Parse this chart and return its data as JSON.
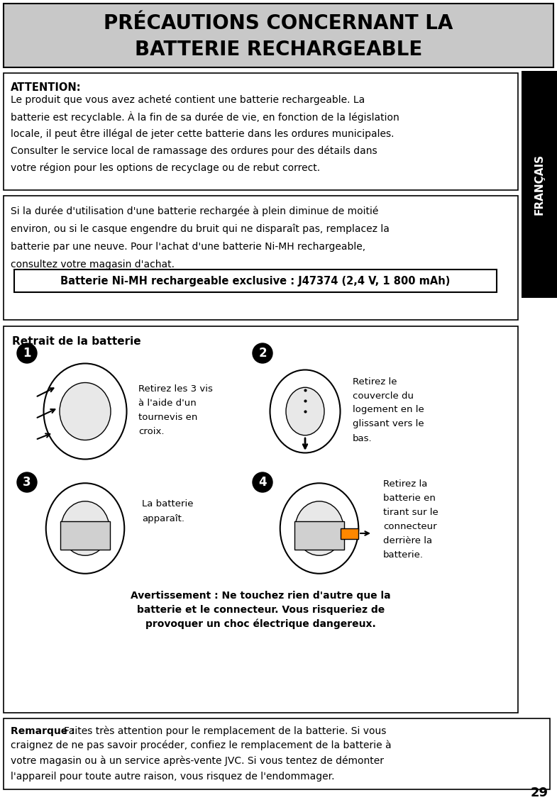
{
  "title_line1": "PRÉCAUTIONS CONCERNANT LA",
  "title_line2": "BATTERIE RECHARGEABLE",
  "title_bg": "#c8c8c8",
  "title_border": "#000000",
  "page_bg": "#ffffff",
  "section1_bold": "ATTENTION:",
  "section1_text": "Le produit que vous avez acheté contient une batterie rechargeable. La\nbatterie est recyclable. À la fin de sa durée de vie, en fonction de la législation\nlocale, il peut être illégal de jeter cette batterie dans les ordures municipales.\nConsulter le service local de ramassage des ordures pour des détails dans\nvotre région pour les options de recyclage ou de rebut correct.",
  "section2_text": "Si la durée d'utilisation d'une batterie rechargée à plein diminue de moitié\nenviron, ou si le casque engendre du bruit qui ne disparaît pas, remplacez la\nbatterie par une neuve. Pour l'achat d'une batterie Ni-MH rechargeable,\nconsultez votre magasin d'achat.",
  "battery_box_text": "Batterie Ni-MH rechargeable exclusive : J47374 (2,4 V, 1 800 mAh)",
  "retrait_title": "Retrait de la batterie",
  "step1_text": "Retirez les 3 vis\nà l'aide d'un\ntournevis en\ncroix.",
  "step2_text": "Retirez le\ncouvercle du\nlogement en le\nglissant vers le\nbas.",
  "step3_text": "La batterie\napparaît.",
  "step4_text": "Retirez la\nbatterie en\ntirant sur le\nconnecteur\nderrière la\nbatterie.",
  "warning_text": "Avertissement : Ne touchez rien d'autre que la\nbatterie et le connecteur. Vous risqueriez de\nprovoquer un choc électrique dangereux.",
  "remarque_bold": "Remarque :",
  "remarque_text": " Faites très attention pour le remplacement de la batterie. Si vous\ncraignez de ne pas savoir procéder, confiez le remplacement de la batterie à\nvotre magasin ou à un service après-vente JVC. Si vous tentez de démonter\nl'appareil pour toute autre raison, vous risquez de l'endommager.",
  "francais_label": "FRANÇAIS",
  "page_number": "29",
  "sidebar_bg": "#000000",
  "sidebar_text": "#ffffff"
}
